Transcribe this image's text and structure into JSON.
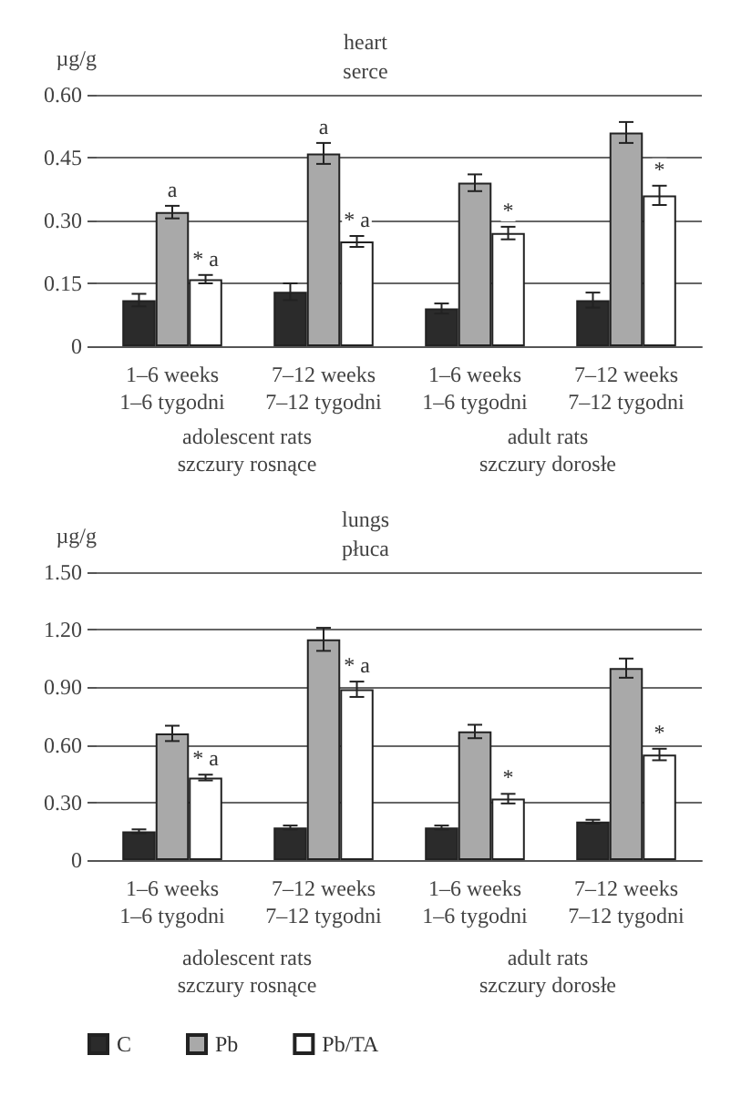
{
  "chart_data": [
    {
      "type": "bar",
      "title": "heart\nserce",
      "ylabel": "µg/g",
      "categories": [
        "1–6 weeks\n1–6 tygodni",
        "7–12 weeks\n7–12 tygodni",
        "1–6 weeks\n1–6 tygodni",
        "7–12 weeks\n7–12 tygodni"
      ],
      "series": [
        {
          "color": "#2b2b2b",
          "values": [
            0.11,
            0.13,
            0.09,
            0.11
          ],
          "errors": [
            0.015,
            0.02,
            0.012,
            0.018
          ]
        },
        {
          "color": "#a9a9a9",
          "values": [
            0.32,
            0.46,
            0.39,
            0.51
          ],
          "errors": [
            0.015,
            0.025,
            0.02,
            0.025
          ],
          "value_labels": [
            "a",
            "a",
            null,
            null
          ]
        },
        {
          "color": "#ffffff",
          "values": [
            0.16,
            0.25,
            0.27,
            0.36
          ],
          "errors": [
            0.01,
            0.013,
            0.015,
            0.023
          ],
          "value_labels": [
            "* a",
            "* a",
            "*",
            "*"
          ]
        }
      ],
      "ylim": [
        0,
        0.6
      ],
      "yticks": [
        0,
        {
          "value": 0.15,
          "label": "0.15"
        },
        {
          "value": 0.3,
          "label": "0.30"
        },
        {
          "value": 0.45,
          "label": "0.45"
        },
        {
          "value": 0.6,
          "label": "0.60"
        }
      ],
      "grid": "y",
      "legend": false,
      "annotations": [
        "adolescent rats\nszczury rosnące",
        "adult rats\nszczury dorosłe"
      ]
    },
    {
      "type": "bar",
      "title": "lungs\npłuca",
      "ylabel": "µg/g",
      "categories": [
        "1–6 weeks\n1–6 tygodni",
        "7–12 weeks\n7–12 tygodni",
        "1–6 weeks\n1–6 tygodni",
        "7–12 weeks\n7–12 tygodni"
      ],
      "series": [
        {
          "name": "C",
          "color": "#2b2b2b",
          "values": [
            0.15,
            0.17,
            0.17,
            0.2
          ],
          "errors": [
            0.01,
            0.01,
            0.01,
            0.01
          ]
        },
        {
          "name": "Pb",
          "color": "#a9a9a9",
          "values": [
            0.66,
            1.15,
            0.67,
            1.0
          ],
          "errors": [
            0.04,
            0.06,
            0.035,
            0.05
          ]
        },
        {
          "name": "Pb/TA",
          "color": "#ffffff",
          "values": [
            0.43,
            0.89,
            0.32,
            0.55
          ],
          "errors": [
            0.015,
            0.04,
            0.025,
            0.03
          ],
          "value_labels": [
            "* a",
            "* a",
            "*",
            "*"
          ]
        }
      ],
      "ylim": [
        0,
        1.5
      ],
      "yticks": [
        0,
        {
          "value": 0.3,
          "label": "0.30"
        },
        {
          "value": 0.6,
          "label": "0.60"
        },
        {
          "value": 0.9,
          "label": "0.90"
        },
        {
          "value": 1.2,
          "label": "1.20"
        },
        {
          "value": 1.5,
          "label": "1.50"
        }
      ],
      "grid": "y",
      "legend": "bottom left",
      "annotations": [
        "adolescent rats\nszczury rosnące",
        "adult rats\nszczury dorosłe"
      ]
    }
  ]
}
